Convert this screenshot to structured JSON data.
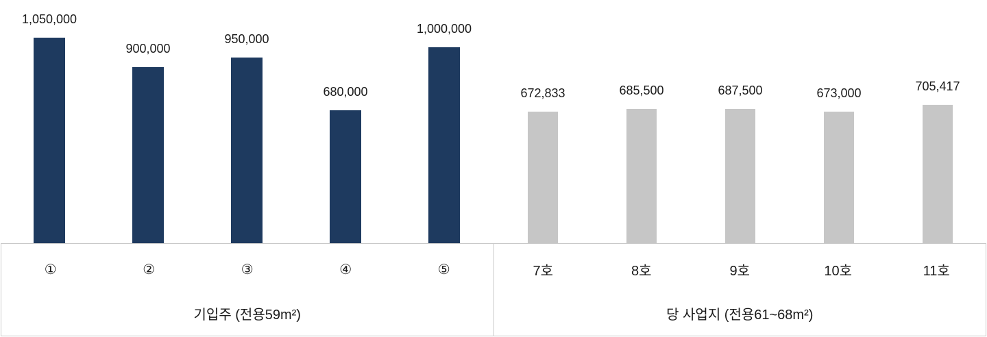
{
  "chart_data": {
    "type": "bar",
    "title": "",
    "xlabel": "",
    "ylabel": "",
    "ylim": [
      0,
      1050000
    ],
    "grid": false,
    "legend": false,
    "axis_layout": "two-level category axis, no value axis shown, data labels above bars",
    "groups": [
      {
        "label": "기입주 (전용59m²)",
        "bar_color": "#1e3a5f",
        "categories": [
          "①",
          "②",
          "③",
          "④",
          "⑤"
        ],
        "values": [
          1050000,
          900000,
          950000,
          680000,
          1000000
        ],
        "value_labels": [
          "1,050,000",
          "900,000",
          "950,000",
          "680,000",
          "1,000,000"
        ]
      },
      {
        "label": "당 사업지 (전용61~68m²)",
        "bar_color": "#c6c6c6",
        "categories": [
          "7호",
          "8호",
          "9호",
          "10호",
          "11호"
        ],
        "values": [
          672833,
          685500,
          687500,
          673000,
          705417
        ],
        "value_labels": [
          "672,833",
          "685,500",
          "687,500",
          "673,000",
          "705,417"
        ]
      }
    ]
  },
  "style": {
    "axis_line_color": "#c9c9c9",
    "text_color": "#1a1a1a",
    "background": "#ffffff"
  }
}
